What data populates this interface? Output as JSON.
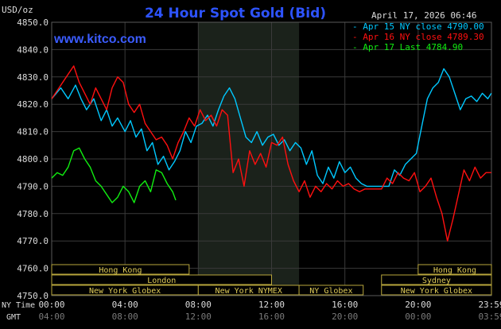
{
  "header": {
    "title": "24 Hour Spot Gold (Bid)",
    "timestamp": "April 17, 2026 06:46",
    "brand": "www.kitco.com",
    "currency_unit": "USD/oz",
    "ny_time_label": "NY Time",
    "gmt_label": "GMT"
  },
  "colors": {
    "background": "#000000",
    "grid": "#3a3a3a",
    "highlight_band": "#1b221b",
    "title": "#2d53ff",
    "axis_text": "#dcdcdc",
    "session_box": "#b8a63c",
    "session_text": "#e0cc58",
    "gmt_text": "#7a7a7a",
    "apr15": "#00c8ff",
    "apr16": "#ff1010",
    "apr17": "#11ee11"
  },
  "sessions": {
    "left": [
      {
        "name": "Hong Kong",
        "row": 0,
        "start_hour": 0,
        "end_hour": 7.5
      },
      {
        "name": "London",
        "row": 1,
        "start_hour": 0,
        "end_hour": 12
      },
      {
        "name": "New York Globex",
        "row": 2,
        "start_hour": 0,
        "end_hour": 8
      },
      {
        "name": "New York NYMEX",
        "row": 2,
        "start_hour": 8,
        "end_hour": 13.5
      },
      {
        "name": "NY Globex",
        "row": 2,
        "start_hour": 13.5,
        "end_hour": 17
      }
    ],
    "right": [
      {
        "name": "Hong Kong",
        "row": 0,
        "start_hour": 20,
        "end_hour": 24
      },
      {
        "name": "Sydney",
        "row": 1,
        "start_hour": 18,
        "end_hour": 24
      },
      {
        "name": "New York Globex",
        "row": 2,
        "start_hour": 18,
        "end_hour": 24
      }
    ]
  },
  "chart_data": {
    "type": "line",
    "title": "24 Hour Spot Gold (Bid)",
    "ylabel": "USD/oz",
    "ylim": [
      4750,
      4850
    ],
    "xlim_hours": [
      0,
      24
    ],
    "highlight_hours": [
      8.0,
      13.5
    ],
    "y_ticks": [
      "4850.0",
      "4840.0",
      "4830.0",
      "4820.0",
      "4810.0",
      "4800.0",
      "4790.0",
      "4780.0",
      "4770.0",
      "4760.0",
      "4750.0"
    ],
    "x_ticks_ny": [
      "00:00",
      "04:00",
      "08:00",
      "12:00",
      "16:00",
      "20:00",
      "23:59"
    ],
    "x_ticks_gmt": [
      "04:00",
      "08:00",
      "12:00",
      "16:00",
      "20:00",
      "00:00",
      "03:59"
    ],
    "grid": true,
    "legend_position": "top-right",
    "series": [
      {
        "name": "Apr 15 NY close 4790.00",
        "color": "#00c8ff",
        "x": [
          0.0,
          0.5,
          0.9,
          1.3,
          1.6,
          1.9,
          2.3,
          2.7,
          3.0,
          3.3,
          3.6,
          4.0,
          4.3,
          4.6,
          4.9,
          5.2,
          5.5,
          5.8,
          6.1,
          6.4,
          6.7,
          7.0,
          7.3,
          7.6,
          7.9,
          8.2,
          8.5,
          8.8,
          9.1,
          9.4,
          9.7,
          10.0,
          10.3,
          10.6,
          10.9,
          11.2,
          11.5,
          11.8,
          12.1,
          12.4,
          12.7,
          13.0,
          13.3,
          13.6,
          13.9,
          14.2,
          14.5,
          14.8,
          15.1,
          15.4,
          15.7,
          16.0,
          16.3,
          16.6,
          16.9,
          17.2,
          17.5,
          17.8,
          18.1,
          18.4,
          18.7,
          19.0,
          19.3,
          19.6,
          19.9,
          20.2,
          20.5,
          20.8,
          21.1,
          21.4,
          21.7,
          22.0,
          22.3,
          22.6,
          22.9,
          23.2,
          23.5,
          23.8,
          23.99
        ],
        "y": [
          4822.0,
          4826.0,
          4822.0,
          4827.0,
          4822.0,
          4818.0,
          4822.0,
          4814.0,
          4818.0,
          4812.0,
          4815.0,
          4810.0,
          4814.0,
          4808.0,
          4811.0,
          4803.0,
          4806.0,
          4798.0,
          4801.0,
          4796.0,
          4799.0,
          4803.0,
          4810.0,
          4806.0,
          4812.0,
          4813.0,
          4816.0,
          4812.0,
          4818.0,
          4823.0,
          4826.0,
          4822.0,
          4815.0,
          4808.0,
          4806.0,
          4810.0,
          4805.0,
          4808.0,
          4809.0,
          4805.0,
          4807.0,
          4803.0,
          4806.0,
          4804.0,
          4798.0,
          4803.0,
          4794.0,
          4791.0,
          4797.0,
          4793.0,
          4799.0,
          4795.0,
          4797.0,
          4793.0,
          4791.0,
          4790.0,
          4790.0,
          4790.0,
          4790.0,
          4790.0,
          4796.0,
          4794.0,
          4798.0,
          4800.0,
          4802.0,
          4812.0,
          4822.0,
          4826.0,
          4828.0,
          4833.0,
          4830.0,
          4824.0,
          4818.0,
          4822.0,
          4823.0,
          4821.0,
          4824.0,
          4822.0,
          4824.0
        ]
      },
      {
        "name": "Apr 16 NY close 4789.30",
        "color": "#ff1010",
        "x": [
          0.0,
          0.4,
          0.8,
          1.2,
          1.5,
          1.8,
          2.1,
          2.4,
          2.7,
          3.0,
          3.3,
          3.6,
          3.9,
          4.2,
          4.5,
          4.8,
          5.1,
          5.4,
          5.7,
          6.0,
          6.3,
          6.6,
          6.9,
          7.2,
          7.5,
          7.8,
          8.1,
          8.4,
          8.7,
          9.0,
          9.3,
          9.6,
          9.9,
          10.2,
          10.5,
          10.8,
          11.1,
          11.4,
          11.7,
          12.0,
          12.3,
          12.6,
          12.9,
          13.2,
          13.5,
          13.8,
          14.1,
          14.4,
          14.7,
          15.0,
          15.3,
          15.6,
          15.9,
          16.2,
          16.5,
          16.8,
          17.1,
          17.4,
          17.7,
          18.0,
          18.3,
          18.6,
          18.9,
          19.2,
          19.5,
          19.8,
          20.1,
          20.4,
          20.7,
          21.0,
          21.3,
          21.6,
          21.9,
          22.2,
          22.5,
          22.8,
          23.1,
          23.4,
          23.7,
          23.99
        ],
        "y": [
          4822.0,
          4826.0,
          4830.0,
          4834.0,
          4828.0,
          4824.0,
          4820.0,
          4826.0,
          4822.0,
          4818.0,
          4826.0,
          4830.0,
          4828.0,
          4820.0,
          4817.0,
          4820.0,
          4813.0,
          4810.0,
          4807.0,
          4808.0,
          4805.0,
          4800.0,
          4806.0,
          4810.0,
          4815.0,
          4812.0,
          4818.0,
          4814.0,
          4816.0,
          4812.0,
          4818.0,
          4816.0,
          4795.0,
          4800.0,
          4790.0,
          4803.0,
          4798.0,
          4802.0,
          4797.0,
          4806.0,
          4805.0,
          4808.0,
          4798.0,
          4792.0,
          4788.0,
          4792.0,
          4786.0,
          4790.0,
          4788.0,
          4791.0,
          4789.0,
          4792.0,
          4790.0,
          4791.0,
          4789.0,
          4788.0,
          4789.0,
          4789.0,
          4789.0,
          4789.0,
          4793.0,
          4791.0,
          4795.0,
          4793.0,
          4792.0,
          4795.0,
          4788.0,
          4790.0,
          4793.0,
          4786.0,
          4780.0,
          4770.0,
          4778.0,
          4787.0,
          4796.0,
          4792.0,
          4797.0,
          4793.0,
          4795.0,
          4795.0
        ]
      },
      {
        "name": "Apr 17 Last 4784.90",
        "color": "#11ee11",
        "x": [
          0.0,
          0.3,
          0.6,
          0.9,
          1.2,
          1.5,
          1.8,
          2.1,
          2.4,
          2.7,
          3.0,
          3.3,
          3.6,
          3.9,
          4.2,
          4.5,
          4.8,
          5.1,
          5.4,
          5.7,
          6.0,
          6.3,
          6.6,
          6.77
        ],
        "y": [
          4793.0,
          4795.0,
          4794.0,
          4797.0,
          4803.0,
          4804.0,
          4800.0,
          4797.0,
          4792.0,
          4790.0,
          4787.0,
          4784.0,
          4786.0,
          4790.0,
          4788.0,
          4784.0,
          4790.0,
          4792.0,
          4788.0,
          4796.0,
          4795.0,
          4791.0,
          4788.0,
          4784.9
        ]
      }
    ]
  }
}
